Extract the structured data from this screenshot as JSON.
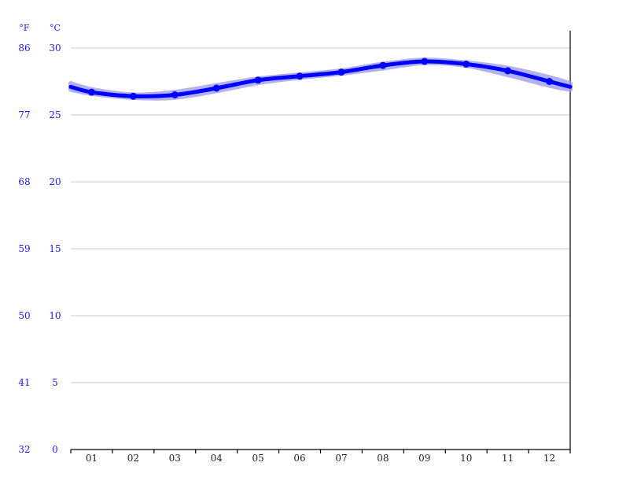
{
  "chart_data": {
    "type": "line",
    "units": {
      "fahrenheit": "°F",
      "celsius": "°C"
    },
    "y_ticks_celsius": [
      "0",
      "5",
      "10",
      "15",
      "20",
      "25",
      "30"
    ],
    "y_ticks_fahrenheit": [
      "32",
      "41",
      "50",
      "59",
      "68",
      "77",
      "86"
    ],
    "ylim": [
      0,
      31.3
    ],
    "grid": true,
    "categories": [
      "01",
      "02",
      "03",
      "04",
      "05",
      "06",
      "07",
      "08",
      "09",
      "10",
      "11",
      "12"
    ],
    "series": [
      {
        "values": [
          26.7,
          26.4,
          26.5,
          27.0,
          27.6,
          27.9,
          28.2,
          28.7,
          29.0,
          28.8,
          28.3,
          27.5
        ]
      }
    ],
    "band_low": [
      26.6,
      26.3,
      26.3,
      26.8,
      27.4,
      27.8,
      28.1,
      28.5,
      28.9,
      28.7,
      28.0,
      27.2
    ],
    "band_high": [
      26.9,
      26.5,
      26.7,
      27.2,
      27.7,
      28.0,
      28.3,
      28.8,
      29.1,
      28.9,
      28.5,
      27.8
    ],
    "colors": {
      "line": "#0000ff",
      "band": "#9999ee",
      "tick_text": "#1a1aff",
      "grid": "#c8c8c8"
    }
  }
}
